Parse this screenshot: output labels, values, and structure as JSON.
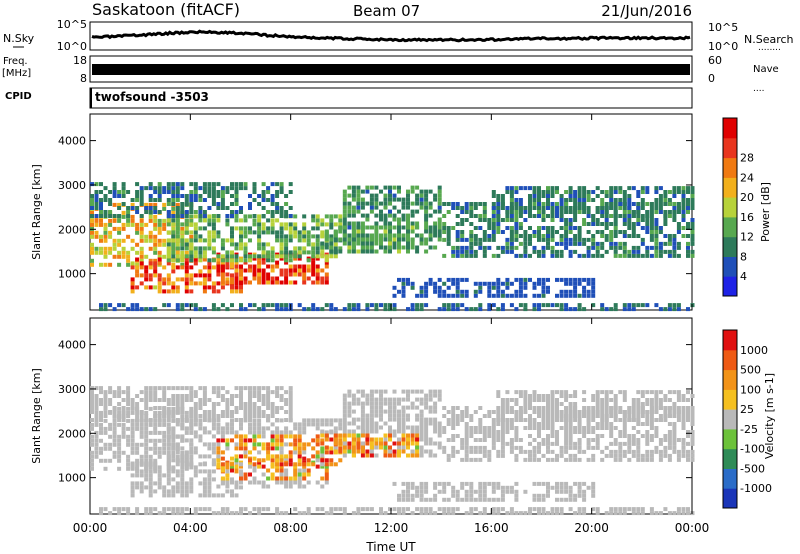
{
  "header": {
    "site": "Saskatoon (fitACF)",
    "beam": "Beam 07",
    "date": "21/Jun/2016"
  },
  "left_labels": {
    "nsky": "N.Sky",
    "freq": "Freq.",
    "freq_unit": "[MHz]",
    "cpid": "CPID"
  },
  "right_labels": {
    "nsearch": "N.Search",
    "nsearch_dots": "........",
    "nave": "Nave",
    "nave_dots": "...."
  },
  "noise_panel": {
    "left_ticks": [
      "10^5",
      "10^0"
    ],
    "right_ticks": [
      "10^5",
      "10^0"
    ]
  },
  "freq_panel": {
    "left_ticks": [
      "18",
      "8"
    ],
    "right_ticks": [
      "60",
      "0"
    ]
  },
  "cpid_panel": {
    "label": "twofsound -3503"
  },
  "xaxis": {
    "label": "Time UT",
    "ticks": [
      "00:00",
      "04:00",
      "08:00",
      "12:00",
      "16:00",
      "20:00",
      "00:00"
    ]
  },
  "chart_data": [
    {
      "type": "heatmap",
      "ylabel": "Slant Range [km]",
      "yticks": [
        1000,
        2000,
        3000,
        4000
      ],
      "ylim": [
        180,
        4600
      ],
      "xlim_hours": [
        0,
        24
      ],
      "colorbar": {
        "label": "Power [dB]",
        "ticks": [
          "4",
          "8",
          "12",
          "16",
          "20",
          "24",
          "28"
        ],
        "colors": [
          "#1e22e6",
          "#1f4fb8",
          "#2d7a5a",
          "#57a84f",
          "#b7d23a",
          "#f2b01c",
          "#f07a12",
          "#e8351e",
          "#e00000"
        ]
      }
    },
    {
      "type": "heatmap",
      "ylabel": "Slant Range [km]",
      "yticks": [
        1000,
        2000,
        3000,
        4000
      ],
      "ylim": [
        180,
        4600
      ],
      "xlim_hours": [
        0,
        24
      ],
      "colorbar": {
        "label": "Velocity [m s-1]",
        "ticks": [
          "1000",
          "500",
          "100",
          "25",
          "-25",
          "-100",
          "-500",
          "-1000"
        ],
        "colors": [
          "#1a35b8",
          "#2a6cc8",
          "#2e8b57",
          "#6cc23a",
          "#b9b9b9",
          "#f5c020",
          "#f29318",
          "#ee5a14",
          "#e01010"
        ]
      }
    }
  ]
}
